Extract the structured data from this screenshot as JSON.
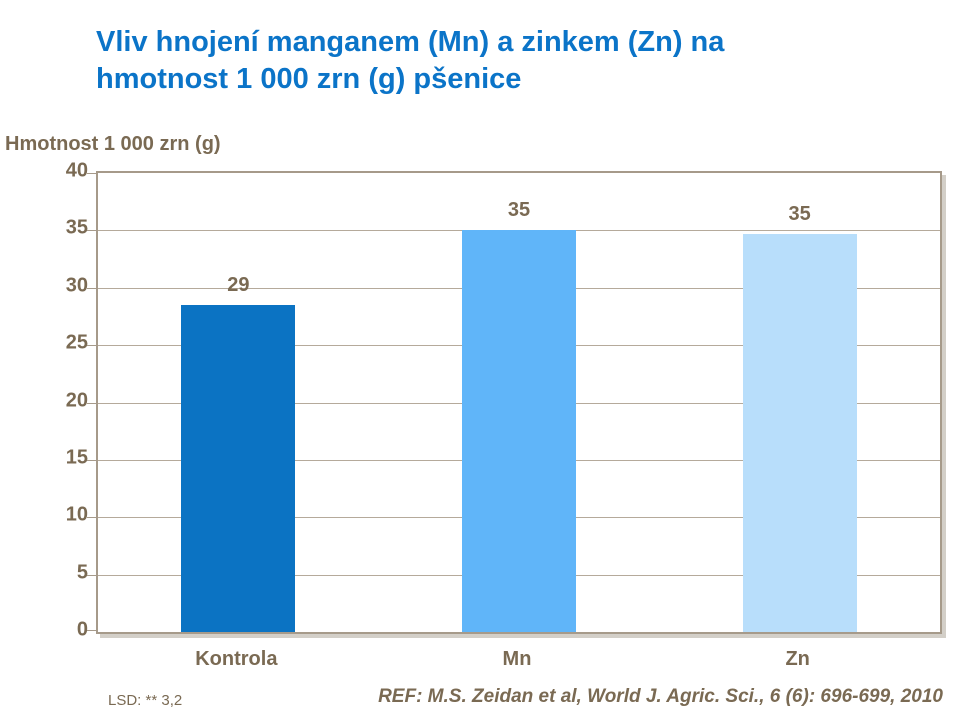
{
  "header": {
    "title_line1": "Vliv hnojení manganem (Mn) a zinkem (Zn) na",
    "title_line2": "hmotnost 1 000 zrn (g) pšenice",
    "title_color": "#0b74c8"
  },
  "chart_data": {
    "type": "bar",
    "title": "Vliv hnojení manganem (Mn) a zinkem (Zn) na hmotnost 1 000 zrn (g) pšenice",
    "axis_title": "Hmotnost 1 000 zrn (g)",
    "xlabel": "",
    "ylabel": "Hmotnost 1 000 zrn (g)",
    "categories": [
      "Kontrola",
      "Mn",
      "Zn"
    ],
    "values": [
      29,
      35,
      35
    ],
    "bar_display_heights": [
      28.5,
      35,
      34.7
    ],
    "bar_colors": [
      "#0b73c3",
      "#60b5f9",
      "#b8defb"
    ],
    "ylim": [
      0,
      40
    ],
    "yticks": [
      0,
      5,
      10,
      15,
      20,
      25,
      30,
      35,
      40
    ],
    "grid": true,
    "legend": "none",
    "text_color": "#7a6a53",
    "gridline_color": "#b5aa9b",
    "axis_color": "#a69a8a"
  },
  "footer": {
    "lsd_note": "LSD: ** 3,2",
    "reference": "REF: M.S. Zeidan et al, World J. Agric. Sci., 6 (6): 696-699, 2010"
  }
}
